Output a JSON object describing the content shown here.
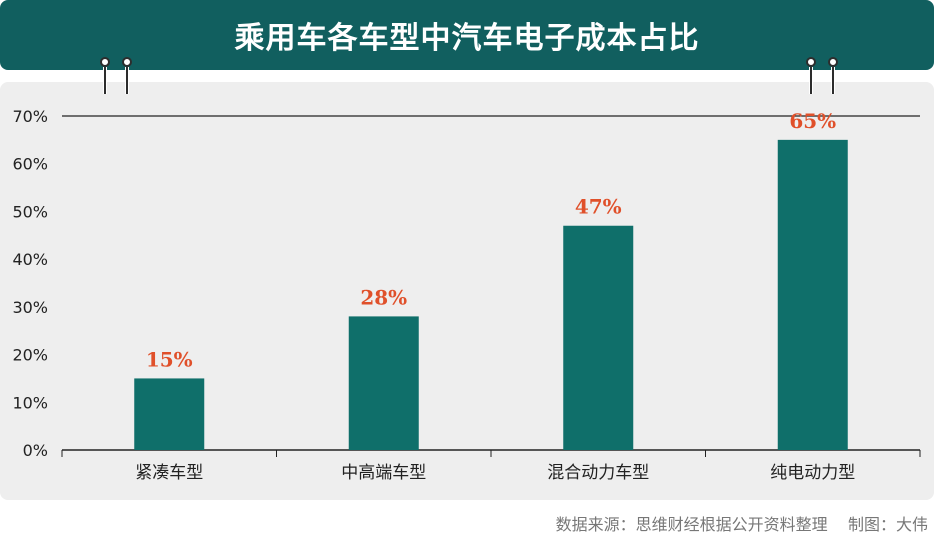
{
  "colors": {
    "title_bg": "#115f5f",
    "bar": "#0f6f6a",
    "value_label": "#e0502a",
    "panel_bg": "#eeeeee",
    "axis": "#222222"
  },
  "footer": {
    "source": "数据来源：思维财经根据公开资料整理",
    "credit": "制图：大伟"
  },
  "chart_data": {
    "type": "bar",
    "title": "乘用车各车型中汽车电子成本占比",
    "xlabel": "",
    "ylabel": "",
    "categories": [
      "紧凑车型",
      "中高端车型",
      "混合动力车型",
      "纯电动力型"
    ],
    "values": [
      15,
      28,
      47,
      65
    ],
    "value_labels": [
      "15%",
      "28%",
      "47%",
      "65%"
    ],
    "ylim": [
      0,
      70
    ],
    "yticks": [
      "0%",
      "10%",
      "20%",
      "30%",
      "40%",
      "50%",
      "60%",
      "70%"
    ],
    "grid": false,
    "legend": "none"
  }
}
